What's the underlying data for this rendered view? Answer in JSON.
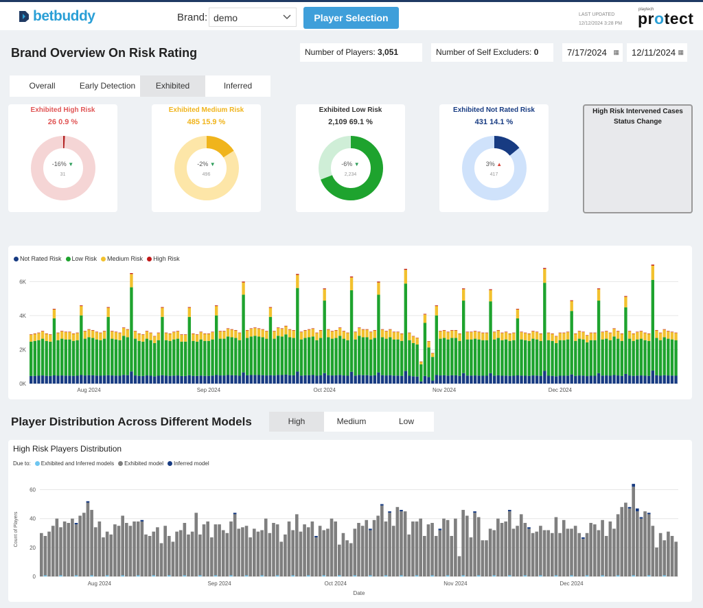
{
  "header": {
    "logo_text": "betbuddy",
    "brand_label": "Brand:",
    "brand_value": "demo",
    "player_selection_label": "Player Selection",
    "last_updated_label": "LAST UPDATED",
    "last_updated_value": "12/12/2024 3:28 PM",
    "protect_super": "playtech",
    "protect_word_a": "pr",
    "protect_word_o": "o",
    "protect_word_b": "tect"
  },
  "overview": {
    "title": "Brand Overview On Risk Rating",
    "num_players_label": "Number of Players:",
    "num_players_value": "3,051",
    "self_excluders_label": "Number of Self Excluders:",
    "self_excluders_value": "0",
    "date_from": "7/17/2024",
    "date_to": "12/11/2024"
  },
  "tabs": [
    "Overall",
    "Early Detection",
    "Exhibited",
    "Inferred"
  ],
  "active_tab": "Exhibited",
  "cards": [
    {
      "title": "Exhibited High Risk",
      "count": "26",
      "percent": "0.9 %",
      "change": "-16%",
      "direction": "down",
      "prev": "31",
      "fraction": 0.009,
      "color": "#b22222",
      "track": "#f5d5d5",
      "title_color": "#e05555"
    },
    {
      "title": "Exhibited Medium Risk",
      "count": "485",
      "percent": "15.9 %",
      "change": "-2%",
      "direction": "down",
      "prev": "496",
      "fraction": 0.159,
      "color": "#f0b41c",
      "track": "#fde6a8",
      "title_color": "#f0b41c"
    },
    {
      "title": "Exhibited Low Risk",
      "count": "2,109",
      "percent": "69.1 %",
      "change": "-6%",
      "direction": "down",
      "prev": "2,234",
      "fraction": 0.691,
      "color": "#1ea32e",
      "track": "#cfeed7",
      "title_color": "#333333"
    },
    {
      "title": "Exhibited Not Rated Risk",
      "count": "431",
      "percent": "14.1 %",
      "change": "3%",
      "direction": "up",
      "prev": "417",
      "fraction": 0.141,
      "color": "#173b82",
      "track": "#cfe2fb",
      "title_color": "#173b82"
    }
  ],
  "intervened": {
    "title": "High Risk Intervened Cases",
    "subtitle": "Status Change"
  },
  "colors": {
    "not_rated": "#173b82",
    "low": "#1ea32e",
    "medium": "#f2c12e",
    "high": "#c01818",
    "gray": "#7f7f7f",
    "light_blue": "#6ec6f0"
  },
  "risk_chart": {
    "legend": [
      "Not Rated Risk",
      "Low Risk",
      "Medium Risk",
      "High Risk"
    ],
    "y_ticks": [
      "6K",
      "4K",
      "2K",
      "0K"
    ],
    "x_ticks": [
      "Aug 2024",
      "Sep 2024",
      "Oct 2024",
      "Nov 2024",
      "Dec 2024"
    ]
  },
  "distribution": {
    "title": "Player Distribution Across Different Models",
    "tabs": [
      "High",
      "Medium",
      "Low"
    ],
    "active_tab": "High",
    "chart_title": "High Risk Players Distribution",
    "legend_prefix": "Due to:",
    "legend": [
      "Exhibited and Inferred models",
      "Exhibited model",
      "Inferred model"
    ],
    "y_ticks": [
      "60",
      "40",
      "20",
      "0"
    ],
    "y_label": "Count of Players",
    "x_ticks": [
      "Aug 2024",
      "Sep 2024",
      "Oct 2024",
      "Nov 2024",
      "Dec 2024"
    ],
    "x_label": "Date"
  },
  "chart_data": [
    {
      "type": "bar",
      "stacked": true,
      "ylim": [
        0,
        6500
      ],
      "x_start": "2024-07-17",
      "x_end": "2024-12-11",
      "series_names": [
        "Not Rated Risk",
        "Low Risk",
        "Medium Risk",
        "High Risk"
      ],
      "daily_totals": [
        2900,
        2950,
        3000,
        3100,
        2950,
        2900,
        4400,
        3000,
        3100,
        3050,
        3050,
        2950,
        3000,
        4600,
        3100,
        3200,
        3150,
        3050,
        3000,
        3100,
        4500,
        3100,
        3050,
        3000,
        3300,
        3200,
        6500,
        3100,
        2950,
        2900,
        3100,
        3000,
        2800,
        3000,
        4500,
        3000,
        2950,
        3050,
        3100,
        2900,
        2900,
        4500,
        2950,
        2900,
        3050,
        2950,
        2950,
        3050,
        4600,
        3100,
        3100,
        3250,
        3200,
        3150,
        3000,
        6000,
        3150,
        3250,
        3300,
        3250,
        3200,
        3100,
        4500,
        3100,
        3300,
        3250,
        3400,
        3200,
        3150,
        6450,
        3050,
        3150,
        3200,
        3250,
        3000,
        3150,
        5600,
        3200,
        3100,
        3150,
        3300,
        3100,
        3000,
        6300,
        3050,
        3300,
        3200,
        3200,
        3050,
        3150,
        6000,
        3200,
        3100,
        3200,
        3050,
        3050,
        2950,
        6750,
        3000,
        2800,
        2700,
        1300,
        4100,
        2500,
        1800,
        4600,
        3100,
        3150,
        3050,
        3150,
        3150,
        2950,
        5600,
        3050,
        3050,
        3100,
        3050,
        3000,
        3000,
        5550,
        3050,
        3150,
        3000,
        3050,
        2950,
        3000,
        4400,
        3050,
        3000,
        2950,
        3100,
        3050,
        2950,
        6800,
        3000,
        2950,
        2800,
        3000,
        3000,
        3050,
        4900,
        2950,
        3100,
        3050,
        2850,
        3000,
        3000,
        5600,
        3050,
        3100,
        3000,
        3250,
        3100,
        2950,
        5150,
        3100,
        2950,
        3050,
        3100,
        3000,
        2950,
        7000,
        3150,
        3000,
        3200,
        3100,
        3050,
        3000
      ],
      "typical_shares": {
        "Not Rated Risk": 0.15,
        "Low Risk": 0.7,
        "Medium Risk": 0.14,
        "High Risk": 0.01
      }
    },
    {
      "type": "bar",
      "stacked": true,
      "ylabel": "Count of Players",
      "xlabel": "Date",
      "ylim": [
        0,
        65
      ],
      "x_start": "2024-07-17",
      "x_end": "2024-12-11",
      "series_names": [
        "Exhibited and Inferred models",
        "Exhibited model",
        "Inferred model"
      ],
      "daily_values": [
        30,
        28,
        31,
        35,
        40,
        34,
        38,
        37,
        40,
        37,
        42,
        44,
        52,
        46,
        34,
        38,
        27,
        31,
        29,
        36,
        35,
        42,
        37,
        35,
        38,
        38,
        39,
        29,
        28,
        31,
        34,
        23,
        35,
        28,
        24,
        31,
        32,
        37,
        29,
        31,
        44,
        29,
        36,
        38,
        27,
        36,
        36,
        32,
        30,
        38,
        44,
        33,
        34,
        35,
        27,
        33,
        31,
        32,
        40,
        30,
        37,
        36,
        24,
        29,
        38,
        32,
        43,
        31,
        36,
        34,
        38,
        28,
        35,
        32,
        33,
        40,
        38,
        22,
        30,
        25,
        23,
        33,
        37,
        35,
        39,
        33,
        39,
        42,
        50,
        38,
        45,
        35,
        48,
        46,
        45,
        29,
        38,
        38,
        40,
        28,
        36,
        37,
        28,
        33,
        40,
        39,
        28,
        40,
        14,
        46,
        42,
        27,
        45,
        41,
        25,
        25,
        33,
        32,
        40,
        37,
        38,
        46,
        33,
        35,
        43,
        37,
        34,
        30,
        31,
        35,
        32,
        32,
        30,
        41,
        30,
        39,
        33,
        33,
        35,
        30,
        27,
        30,
        37,
        36,
        32,
        39,
        28,
        38,
        33,
        43,
        48,
        51,
        48,
        64,
        47,
        41,
        45,
        44,
        35,
        20,
        30,
        25,
        31,
        28,
        24
      ],
      "inferred_top": [
        0,
        0,
        0,
        0,
        0,
        0,
        0,
        0,
        0,
        1,
        0,
        0,
        1,
        0,
        0,
        0,
        0,
        0,
        0,
        0,
        0,
        0,
        0,
        0,
        0,
        0,
        1,
        0,
        0,
        0,
        0,
        0,
        0,
        0,
        0,
        0,
        0,
        0,
        0,
        0,
        0,
        0,
        0,
        0,
        0,
        0,
        0,
        0,
        0,
        0,
        1,
        0,
        0,
        0,
        0,
        0,
        0,
        0,
        0,
        0,
        0,
        0,
        0,
        0,
        0,
        0,
        0,
        0,
        0,
        0,
        0,
        1,
        0,
        0,
        0,
        0,
        0,
        0,
        0,
        0,
        0,
        0,
        0,
        0,
        0,
        1,
        0,
        0,
        1,
        0,
        1,
        0,
        0,
        1,
        0,
        0,
        0,
        0,
        0,
        0,
        0,
        0,
        0,
        1,
        0,
        0,
        0,
        0,
        0,
        0,
        0,
        0,
        1,
        0,
        0,
        0,
        0,
        0,
        0,
        0,
        0,
        1,
        0,
        0,
        0,
        0,
        1,
        0,
        0,
        0,
        0,
        0,
        0,
        0,
        0,
        0,
        0,
        0,
        0,
        0,
        1,
        0,
        0,
        0,
        0,
        0,
        0,
        0,
        0,
        0,
        0,
        0,
        1,
        2,
        2,
        1,
        0,
        1,
        0,
        0,
        0,
        0,
        0,
        0,
        0
      ]
    }
  ]
}
